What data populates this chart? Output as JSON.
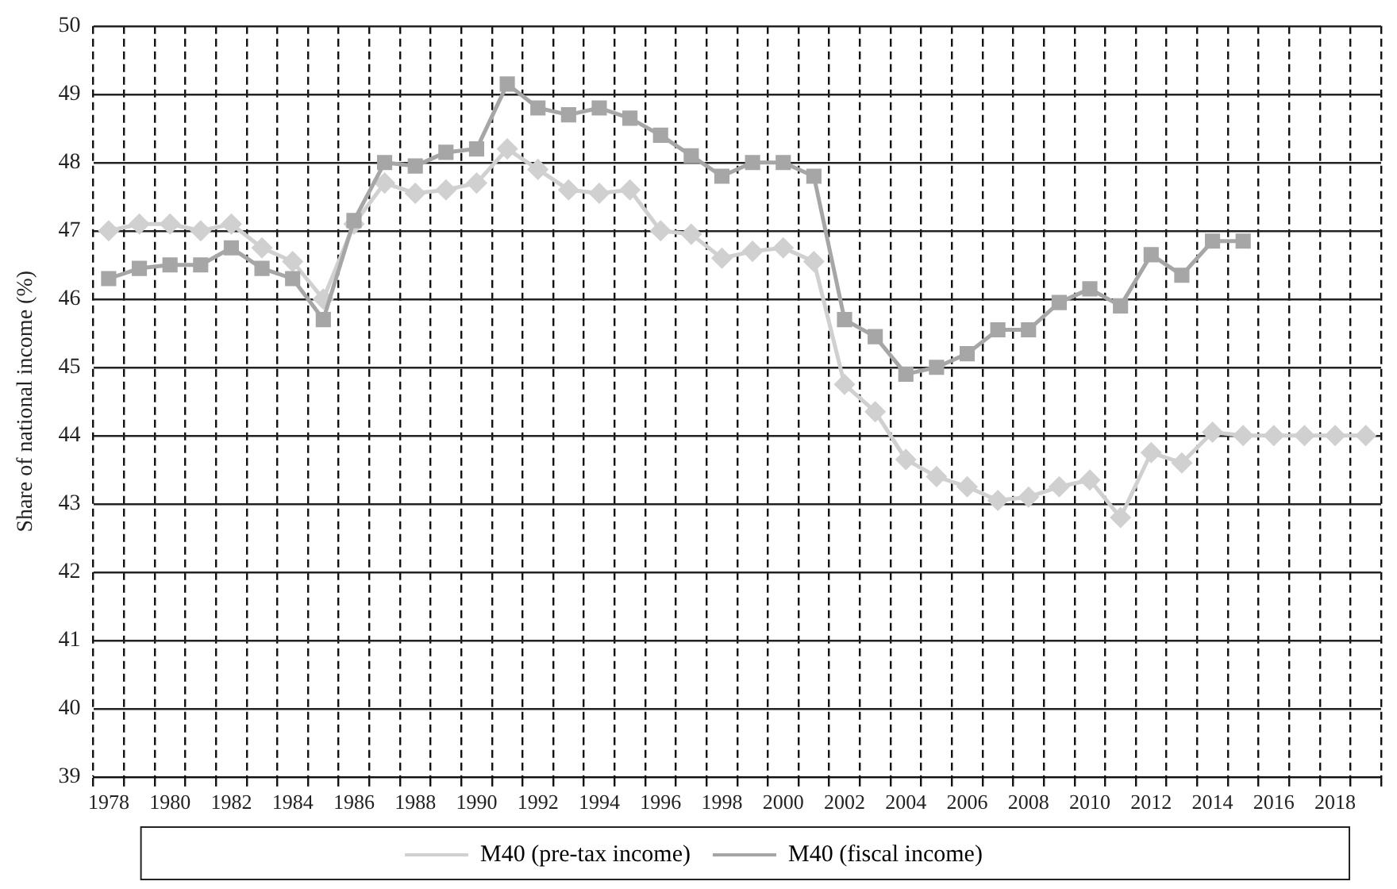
{
  "chart_data": {
    "type": "line",
    "ylabel": "Share of national income (%)",
    "categories": [
      "1978",
      null,
      "1980",
      null,
      "1982",
      null,
      "1984",
      null,
      "1986",
      null,
      "1988",
      null,
      "1990",
      null,
      "1992",
      null,
      "1994",
      null,
      "1996",
      null,
      "1998",
      null,
      "2000",
      null,
      "2002",
      null,
      "2004",
      null,
      "2006",
      null,
      "2008",
      null,
      "2010",
      null,
      "2012",
      null,
      "2014",
      null,
      "2016",
      null,
      "2018",
      null
    ],
    "series": [
      {
        "name": "M40 (pre-tax income)",
        "color": "#d0d0d0",
        "marker": "diamond",
        "values": [
          47.0,
          47.1,
          47.1,
          47.0,
          47.1,
          46.75,
          46.55,
          46.0,
          47.1,
          47.7,
          47.55,
          47.6,
          47.7,
          48.2,
          47.9,
          47.6,
          47.55,
          47.6,
          47.0,
          46.95,
          46.6,
          46.7,
          46.75,
          46.55,
          44.75,
          44.35,
          43.65,
          43.4,
          43.25,
          43.05,
          43.1,
          43.25,
          43.35,
          42.8,
          43.75,
          43.6,
          44.05,
          44.0,
          44.0,
          44.0,
          44.0,
          44.0
        ]
      },
      {
        "name": "M40 (fiscal income)",
        "color": "#a6a6a6",
        "marker": "square",
        "values": [
          46.3,
          46.45,
          46.5,
          46.5,
          46.75,
          46.45,
          46.3,
          45.7,
          47.15,
          48.0,
          47.95,
          48.15,
          48.2,
          49.15,
          48.8,
          48.7,
          48.8,
          48.65,
          48.4,
          48.1,
          47.8,
          48.0,
          48.0,
          47.8,
          45.7,
          45.45,
          44.9,
          45.0,
          45.2,
          45.55,
          45.55,
          45.95,
          46.15,
          45.9,
          46.65,
          46.35,
          46.85,
          46.85,
          null,
          null,
          null,
          null
        ]
      }
    ],
    "ylim": [
      39,
      50
    ],
    "yticks": [
      39,
      40,
      41,
      42,
      43,
      44,
      45,
      46,
      47,
      48,
      49,
      50
    ],
    "grid": true,
    "legend": "bottom",
    "line_style": "solid"
  }
}
